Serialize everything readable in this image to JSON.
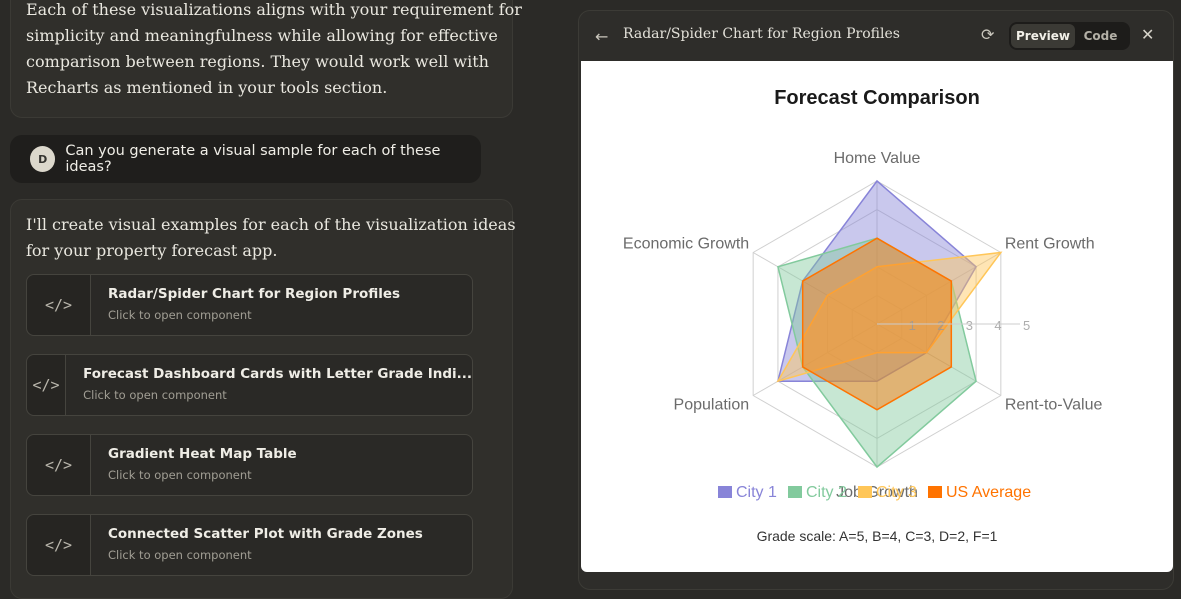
{
  "chat": {
    "top_message_lines": [
      "Each of these visualizations aligns with your requirement for",
      "simplicity and meaningfulness while allowing for effective",
      "comparison between regions. They would work well with",
      "Recharts as mentioned in your tools section."
    ],
    "user": {
      "avatar_initial": "D",
      "text": "Can you generate a visual sample for each of these ideas?"
    },
    "reply_lines": [
      "I'll create visual examples for each of the visualization ideas",
      "for your property forecast app."
    ],
    "artifacts": [
      {
        "title": "Radar/Spider Chart for Region Profiles",
        "subtitle": "Click to open component"
      },
      {
        "title": "Forecast Dashboard Cards with Letter Grade Indi...",
        "subtitle": "Click to open component"
      },
      {
        "title": "Gradient Heat Map Table",
        "subtitle": "Click to open component"
      },
      {
        "title": "Connected Scatter Plot with Grade Zones",
        "subtitle": "Click to open component"
      }
    ],
    "artifact_icon": "code-icon"
  },
  "panel": {
    "title": "Radar/Spider Chart for Region Profiles",
    "toggle": {
      "preview": "Preview",
      "code": "Code"
    },
    "icons": [
      "back-arrow-icon",
      "refresh-icon",
      "close-icon"
    ]
  },
  "chart_data": {
    "type": "radar",
    "title": "Forecast Comparison",
    "axes": [
      "Home Value",
      "Rent Growth",
      "Rent-to-Value",
      "Job Growth",
      "Population",
      "Economic Growth"
    ],
    "radius_ticks": [
      "1",
      "2",
      "3",
      "4",
      "5"
    ],
    "range": [
      0,
      5
    ],
    "series": [
      {
        "name": "City 1",
        "color": "#8884d8",
        "values": [
          5,
          4,
          2,
          2,
          4,
          3
        ]
      },
      {
        "name": "City 2",
        "color": "#82ca9d",
        "values": [
          3,
          3,
          4,
          5,
          3,
          4
        ]
      },
      {
        "name": "City 3",
        "color": "#ffc658",
        "values": [
          2,
          5,
          2,
          1,
          4,
          2
        ]
      },
      {
        "name": "US Average",
        "color": "#ff7300",
        "values": [
          3,
          3,
          3,
          3,
          3,
          3
        ]
      }
    ],
    "footnote": "Grade scale: A=5, B=4, C=3, D=2, F=1"
  }
}
